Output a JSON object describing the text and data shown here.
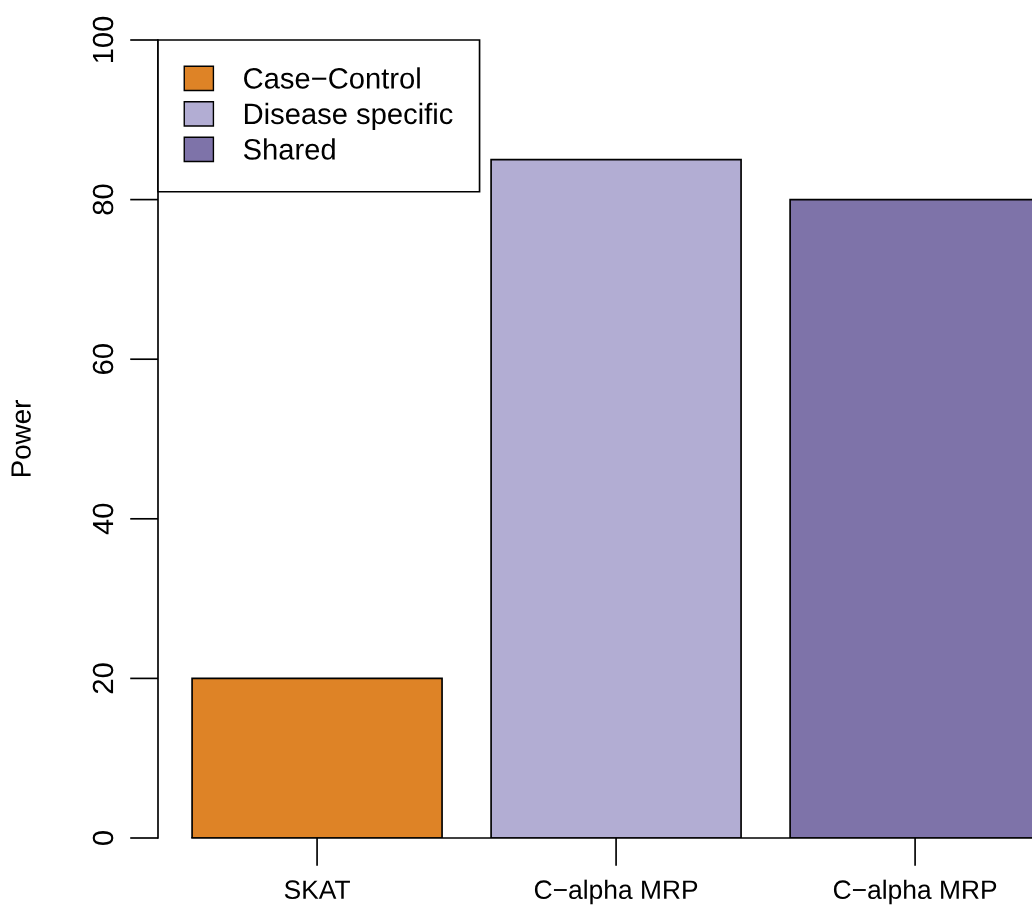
{
  "chart_data": {
    "type": "bar",
    "ylabel": "Power",
    "categories": [
      "SKAT",
      "C−alpha MRP",
      "C−alpha MRP"
    ],
    "series": [
      {
        "name": "Case−Control",
        "color": "#de8326",
        "values": [
          20,
          null,
          null
        ]
      },
      {
        "name": "Disease specific",
        "color": "#b2add3",
        "values": [
          null,
          85,
          null
        ]
      },
      {
        "name": "Shared",
        "color": "#7e73a9",
        "values": [
          null,
          null,
          80
        ]
      }
    ],
    "ylim": [
      0,
      100
    ],
    "yticks": [
      0,
      20,
      40,
      60,
      80,
      100
    ],
    "legend": "top left",
    "grid": false
  }
}
